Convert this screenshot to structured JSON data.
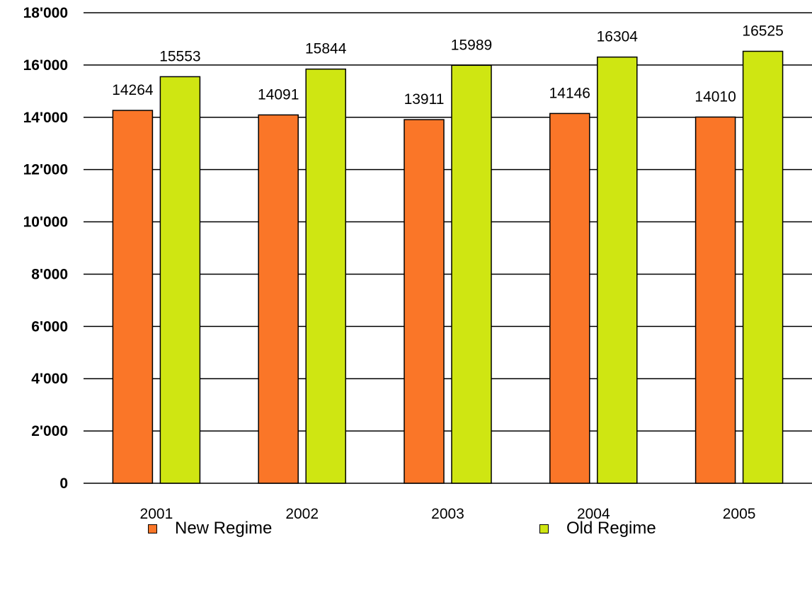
{
  "chart_data": {
    "type": "bar",
    "categories": [
      "2001",
      "2002",
      "2003",
      "2004",
      "2005"
    ],
    "series": [
      {
        "name": "New Regime",
        "color": "#fa7628",
        "values": [
          14264,
          14091,
          13911,
          14146,
          14010
        ]
      },
      {
        "name": "Old Regime",
        "color": "#cfe612",
        "values": [
          15553,
          15844,
          15989,
          16304,
          16525
        ]
      }
    ],
    "ylim": [
      0,
      18000
    ],
    "yticks": [
      0,
      2000,
      4000,
      6000,
      8000,
      10000,
      12000,
      14000,
      16000,
      18000
    ],
    "ytick_labels": [
      "0",
      "2'000",
      "4'000",
      "6'000",
      "8'000",
      "10'000",
      "12'000",
      "14'000",
      "16'000",
      "18'000"
    ],
    "grid": true,
    "legend_position": "bottom"
  }
}
